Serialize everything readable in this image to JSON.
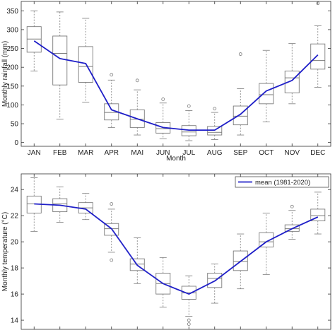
{
  "colors": {
    "mean_line": "#1f1fc8",
    "box": "#7a7a7a",
    "axis": "#333333"
  },
  "chart_data": [
    {
      "type": "box",
      "title": "",
      "xlabel": "Month",
      "ylabel": "Monthly rainfall (mm)",
      "categories": [
        "JAN",
        "FEB",
        "MAR",
        "APR",
        "MAI",
        "JUN",
        "JUL",
        "AUG",
        "SEP",
        "OCT",
        "NOV",
        "DEC"
      ],
      "ylim": [
        -10,
        375
      ],
      "yticks": [
        0,
        50,
        100,
        150,
        200,
        250,
        300,
        350
      ],
      "grid": false,
      "boxes": [
        {
          "whislo": 190,
          "q1": 240,
          "med": 275,
          "q3": 308,
          "whishi": 350,
          "fliers": []
        },
        {
          "whislo": 62,
          "q1": 153,
          "med": 237,
          "q3": 283,
          "whishi": 347,
          "fliers": []
        },
        {
          "whislo": 107,
          "q1": 160,
          "med": 202,
          "q3": 255,
          "whishi": 330,
          "fliers": []
        },
        {
          "whislo": 40,
          "q1": 60,
          "med": 80,
          "q3": 103,
          "whishi": 166,
          "fliers": [
            180
          ]
        },
        {
          "whislo": 20,
          "q1": 40,
          "med": 62,
          "q3": 87,
          "whishi": 140,
          "fliers": [
            165
          ]
        },
        {
          "whislo": 10,
          "q1": 25,
          "med": 37,
          "q3": 53,
          "whishi": 105,
          "fliers": [
            115
          ]
        },
        {
          "whislo": 5,
          "q1": 18,
          "med": 28,
          "q3": 45,
          "whishi": 85,
          "fliers": [
            97
          ]
        },
        {
          "whislo": 8,
          "q1": 20,
          "med": 27,
          "q3": 43,
          "whishi": 80,
          "fliers": [
            90
          ]
        },
        {
          "whislo": 20,
          "q1": 47,
          "med": 70,
          "q3": 97,
          "whishi": 143,
          "fliers": [
            235
          ]
        },
        {
          "whislo": 55,
          "q1": 103,
          "med": 127,
          "q3": 157,
          "whishi": 245,
          "fliers": []
        },
        {
          "whislo": 103,
          "q1": 132,
          "med": 172,
          "q3": 190,
          "whishi": 263,
          "fliers": []
        },
        {
          "whislo": 147,
          "q1": 195,
          "med": 218,
          "q3": 262,
          "whishi": 310,
          "fliers": [
            370
          ]
        }
      ],
      "series": [
        {
          "values": [
            270,
            223,
            210,
            87,
            63,
            40,
            33,
            33,
            75,
            137,
            165,
            233
          ]
        }
      ]
    },
    {
      "type": "box",
      "title": "",
      "xlabel": "",
      "ylabel": "Monthly temperature (°C)",
      "categories": [
        "JAN",
        "FEB",
        "MAR",
        "APR",
        "MAI",
        "JUN",
        "JUL",
        "AUG",
        "SEP",
        "OCT",
        "NOV",
        "DEC"
      ],
      "ylim": [
        13.3,
        25.2
      ],
      "yticks": [
        14,
        16,
        18,
        20,
        22,
        24
      ],
      "grid": false,
      "legend": {
        "position": "top-right",
        "entries": [
          "mean (1981-2020)"
        ]
      },
      "boxes": [
        {
          "whislo": 20.8,
          "q1": 22.2,
          "med": 22.9,
          "q3": 23.5,
          "whishi": 24.9,
          "fliers": []
        },
        {
          "whislo": 21.5,
          "q1": 22.3,
          "med": 22.9,
          "q3": 23.3,
          "whishi": 24.2,
          "fliers": []
        },
        {
          "whislo": 21.7,
          "q1": 22.2,
          "med": 22.6,
          "q3": 23.0,
          "whishi": 23.7,
          "fliers": []
        },
        {
          "whislo": 19.2,
          "q1": 20.5,
          "med": 21.0,
          "q3": 21.4,
          "whishi": 22.5,
          "fliers": [
            22.9,
            18.6
          ]
        },
        {
          "whislo": 16.8,
          "q1": 17.8,
          "med": 18.3,
          "q3": 18.7,
          "whishi": 20.3,
          "fliers": []
        },
        {
          "whislo": 15.0,
          "q1": 16.0,
          "med": 16.8,
          "q3": 17.6,
          "whishi": 18.8,
          "fliers": []
        },
        {
          "whislo": 14.3,
          "q1": 15.6,
          "med": 16.1,
          "q3": 16.6,
          "whishi": 17.4,
          "fliers": [
            14.0,
            13.7
          ]
        },
        {
          "whislo": 15.3,
          "q1": 16.5,
          "med": 17.2,
          "q3": 17.6,
          "whishi": 18.3,
          "fliers": []
        },
        {
          "whislo": 16.4,
          "q1": 17.8,
          "med": 18.5,
          "q3": 19.3,
          "whishi": 20.6,
          "fliers": []
        },
        {
          "whislo": 17.5,
          "q1": 19.6,
          "med": 20.0,
          "q3": 20.7,
          "whishi": 22.2,
          "fliers": []
        },
        {
          "whislo": 20.2,
          "q1": 20.8,
          "med": 21.0,
          "q3": 21.3,
          "whishi": 22.4,
          "fliers": [
            22.7
          ]
        },
        {
          "whislo": 20.6,
          "q1": 21.6,
          "med": 22.0,
          "q3": 22.5,
          "whishi": 23.8,
          "fliers": []
        }
      ],
      "series": [
        {
          "name": "mean (1981-2020)",
          "values": [
            22.9,
            22.8,
            22.5,
            21.0,
            18.2,
            16.8,
            16.0,
            17.0,
            18.5,
            20.0,
            21.0,
            21.9
          ]
        }
      ]
    }
  ]
}
